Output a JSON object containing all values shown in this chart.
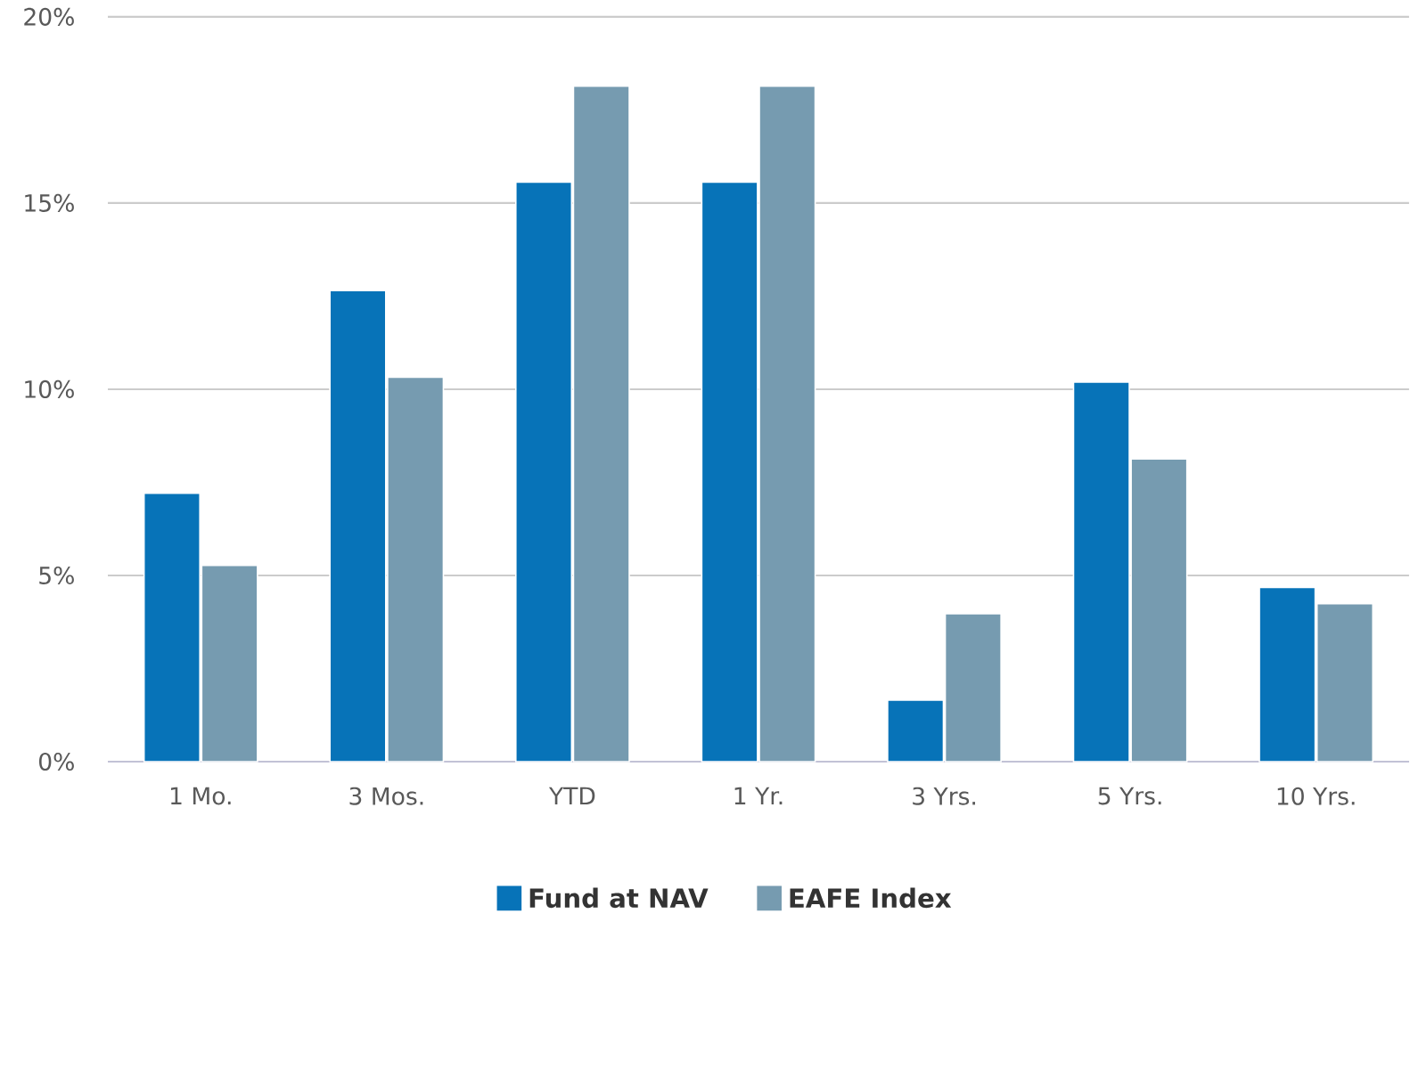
{
  "chart_data": {
    "type": "bar",
    "categories": [
      "1 Mo.",
      "3 Mos.",
      "YTD",
      "1 Yr.",
      "3 Yrs.",
      "5 Yrs.",
      "10 Yrs."
    ],
    "series": [
      {
        "name": "Fund at NAV",
        "color": "#0773b8",
        "values": [
          7.21,
          12.65,
          15.56,
          15.56,
          1.65,
          10.19,
          4.68
        ]
      },
      {
        "name": "EAFE Index",
        "color": "#769bb0",
        "values": [
          5.27,
          10.32,
          18.14,
          18.14,
          3.97,
          8.13,
          4.24
        ]
      }
    ],
    "ylim": [
      0,
      20
    ],
    "yticks": [
      {
        "value": 0,
        "label": "0%"
      },
      {
        "value": 5,
        "label": "5%"
      },
      {
        "value": 10,
        "label": "10%"
      },
      {
        "value": 15,
        "label": "15%"
      },
      {
        "value": 20,
        "label": "20%"
      }
    ],
    "grid": "y",
    "legend": "bottom"
  }
}
